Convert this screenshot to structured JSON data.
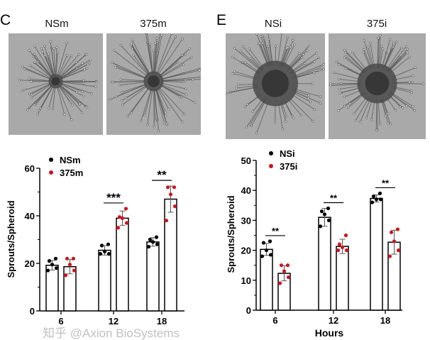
{
  "panels": [
    {
      "letter": "C",
      "images": [
        {
          "title": "NSm"
        },
        {
          "title": "375m"
        }
      ]
    },
    {
      "letter": "E",
      "images": [
        {
          "title": "NSi"
        },
        {
          "title": "375i"
        }
      ]
    }
  ],
  "watermark": "知乎 @Axion BioSystems",
  "colors": {
    "series1": "#000000",
    "series2": "#d0141e",
    "bar_fill": "#ffffff",
    "bar_stroke": "#000000",
    "error_bar": "#555555"
  },
  "chart_data": [
    {
      "type": "bar",
      "title": "",
      "xlabel": "",
      "ylabel": "Sprouts/Spheroid",
      "categories": [
        "6",
        "12",
        "18"
      ],
      "ylim": [
        0,
        60
      ],
      "yticks": [
        0,
        20,
        40,
        60
      ],
      "legend": "top-left",
      "grid": false,
      "series": [
        {
          "name": "NSm",
          "values": [
            19.2,
            25.5,
            29.0
          ],
          "sd": [
            2.0,
            2.0,
            1.8
          ],
          "points": [
            [
              17,
              18,
              19.5,
              21,
              22
            ],
            [
              24,
              24,
              25,
              27.5,
              28
            ],
            [
              27,
              28,
              29,
              30,
              31
            ]
          ]
        },
        {
          "name": "375m",
          "values": [
            18.6,
            39.0,
            47.0
          ],
          "sd": [
            3.0,
            3.0,
            5.5
          ],
          "points": [
            [
              15,
              17,
              19.5,
              22,
              22
            ],
            [
              35,
              37,
              39,
              39.5,
              43
            ],
            [
              38,
              44,
              49,
              52,
              52
            ]
          ]
        }
      ],
      "significance": [
        "",
        "***",
        "**"
      ]
    },
    {
      "type": "bar",
      "title": "",
      "xlabel": "Hours",
      "ylabel": "Sprouts/Spheroid",
      "categories": [
        "6",
        "12",
        "18"
      ],
      "ylim": [
        0,
        50
      ],
      "yticks": [
        0,
        10,
        20,
        30,
        40,
        50
      ],
      "legend": "top-left",
      "grid": false,
      "series": [
        {
          "name": "NSi",
          "values": [
            20.3,
            31.0,
            37.3
          ],
          "sd": [
            2.0,
            3.0,
            1.2
          ],
          "points": [
            [
              18,
              18.5,
              20,
              22.5,
              23
            ],
            [
              28,
              30,
              32,
              33,
              34
            ],
            [
              36,
              37,
              37,
              38,
              39
            ]
          ]
        },
        {
          "name": "375i",
          "values": [
            12.3,
            21.3,
            22.7
          ],
          "sd": [
            2.5,
            2.4,
            4.0
          ],
          "points": [
            [
              9,
              11,
              13,
              15,
              15
            ],
            [
              20,
              20,
              21,
              22,
              25
            ],
            [
              18,
              20,
              23,
              26,
              27
            ]
          ]
        }
      ],
      "significance": [
        "**",
        "**",
        "**"
      ]
    }
  ]
}
